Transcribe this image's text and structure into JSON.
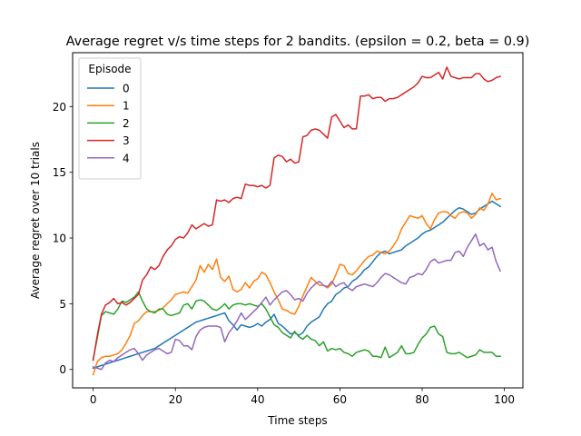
{
  "chart_data": {
    "type": "line",
    "title": "Average regret v/s time steps for 2 bandits. (epsilon = 0.2, beta = 0.9)",
    "xlabel": "Time steps",
    "ylabel": "Average regret over 10 trials",
    "xlim": [
      -5,
      104.5
    ],
    "ylim": [
      -1.4,
      24.1
    ],
    "xticks": [
      0,
      20,
      40,
      60,
      80,
      100
    ],
    "yticks": [
      0,
      5,
      10,
      15,
      20
    ],
    "grid": false,
    "legend": {
      "title": "Episode",
      "placement": "top-left"
    },
    "x": [
      0,
      1,
      2,
      3,
      4,
      5,
      6,
      7,
      8,
      9,
      10,
      11,
      12,
      13,
      14,
      15,
      16,
      17,
      18,
      19,
      20,
      21,
      22,
      23,
      24,
      25,
      26,
      27,
      28,
      29,
      30,
      31,
      32,
      33,
      34,
      35,
      36,
      37,
      38,
      39,
      40,
      41,
      42,
      43,
      44,
      45,
      46,
      47,
      48,
      49,
      50,
      51,
      52,
      53,
      54,
      55,
      56,
      57,
      58,
      59,
      60,
      61,
      62,
      63,
      64,
      65,
      66,
      67,
      68,
      69,
      70,
      71,
      72,
      73,
      74,
      75,
      76,
      77,
      78,
      79,
      80,
      81,
      82,
      83,
      84,
      85,
      86,
      87,
      88,
      89,
      90,
      91,
      92,
      93,
      94,
      95,
      96,
      97,
      98,
      99
    ],
    "series": [
      {
        "name": "0",
        "color": "#1f77b4",
        "values": [
          0.1,
          0.2,
          0.3,
          0.4,
          0.5,
          0.6,
          0.7,
          0.8,
          0.9,
          1.0,
          1.1,
          1.2,
          1.3,
          1.4,
          1.5,
          1.6,
          1.8,
          2.0,
          2.2,
          2.4,
          2.6,
          2.8,
          3.0,
          3.2,
          3.4,
          3.6,
          3.7,
          3.8,
          3.9,
          4.0,
          4.1,
          4.2,
          4.3,
          3.7,
          3.4,
          3.0,
          3.4,
          3.3,
          3.2,
          3.3,
          3.5,
          3.3,
          3.6,
          3.8,
          4.2,
          3.5,
          3.3,
          3.0,
          2.7,
          2.8,
          2.6,
          2.8,
          3.3,
          3.6,
          3.8,
          4.0,
          4.6,
          5.0,
          5.2,
          5.7,
          5.9,
          6.2,
          6.3,
          6.7,
          6.9,
          7.2,
          7.6,
          7.8,
          8.2,
          8.6,
          8.9,
          9.0,
          8.8,
          8.9,
          9.0,
          9.1,
          9.4,
          9.6,
          9.8,
          10.0,
          10.3,
          10.5,
          10.6,
          10.8,
          11.0,
          11.2,
          11.5,
          11.8,
          12.1,
          12.3,
          12.2,
          12.0,
          11.8,
          11.9,
          12.2,
          12.4,
          12.6,
          12.8,
          12.6,
          12.4
        ]
      },
      {
        "name": "1",
        "color": "#ff7f0e",
        "values": [
          -0.4,
          0.6,
          0.9,
          1.0,
          1.0,
          1.1,
          1.2,
          1.5,
          2.0,
          2.6,
          3.5,
          3.7,
          4.1,
          4.4,
          4.4,
          4.4,
          4.5,
          4.7,
          5.0,
          5.3,
          5.7,
          5.8,
          5.9,
          5.8,
          6.3,
          6.8,
          7.9,
          7.4,
          8.0,
          7.6,
          8.4,
          7.0,
          6.7,
          7.1,
          6.1,
          5.9,
          6.1,
          6.6,
          6.2,
          6.7,
          6.9,
          7.4,
          7.2,
          6.6,
          5.9,
          5.3,
          4.6,
          4.5,
          4.3,
          4.2,
          4.8,
          5.6,
          6.3,
          7.0,
          6.7,
          6.4,
          6.4,
          6.2,
          6.5,
          7.2,
          8.0,
          7.9,
          7.3,
          7.2,
          7.5,
          7.9,
          8.3,
          8.6,
          8.7,
          9.0,
          8.9,
          8.8,
          9.0,
          9.4,
          9.9,
          10.7,
          11.2,
          11.7,
          11.6,
          11.5,
          11.7,
          11.1,
          10.7,
          11.4,
          11.9,
          12.0,
          12.0,
          11.7,
          11.5,
          11.9,
          12.0,
          11.9,
          11.5,
          11.8,
          12.3,
          12.1,
          12.6,
          13.4,
          12.9,
          13.0
        ]
      },
      {
        "name": "2",
        "color": "#2ca02c",
        "values": [
          0.8,
          2.4,
          4.1,
          4.4,
          4.3,
          4.2,
          4.6,
          5.2,
          5.1,
          5.3,
          5.5,
          5.9,
          5.2,
          4.6,
          4.4,
          4.3,
          4.6,
          4.6,
          4.2,
          4.1,
          4.2,
          4.3,
          4.9,
          5.0,
          4.6,
          5.2,
          5.3,
          5.2,
          4.9,
          4.6,
          4.5,
          4.7,
          5.0,
          4.6,
          4.9,
          5.0,
          5.0,
          4.9,
          5.0,
          4.9,
          4.8,
          5.0,
          4.6,
          4.0,
          3.4,
          3.2,
          2.8,
          2.6,
          2.4,
          2.9,
          2.5,
          2.3,
          2.6,
          2.3,
          2.2,
          1.8,
          2.1,
          1.4,
          1.6,
          1.5,
          1.6,
          1.3,
          1.2,
          1.0,
          1.3,
          1.4,
          1.5,
          1.4,
          1.0,
          1.0,
          0.9,
          1.7,
          0.9,
          1.1,
          1.3,
          1.8,
          1.2,
          1.2,
          1.3,
          1.9,
          2.4,
          2.7,
          3.2,
          3.3,
          2.7,
          2.5,
          1.3,
          1.2,
          1.2,
          1.3,
          1.1,
          0.9,
          1.0,
          1.1,
          1.5,
          1.3,
          1.3,
          1.3,
          1.0,
          1.0
        ]
      },
      {
        "name": "3",
        "color": "#d62728",
        "values": [
          0.7,
          2.6,
          4.2,
          4.9,
          5.1,
          5.4,
          5.0,
          5.1,
          4.9,
          5.1,
          5.4,
          5.7,
          6.8,
          7.2,
          7.8,
          7.6,
          7.9,
          8.6,
          9.1,
          9.4,
          9.9,
          10.1,
          10.0,
          10.4,
          11.0,
          10.7,
          10.9,
          11.1,
          10.9,
          11.0,
          12.9,
          12.8,
          12.9,
          12.7,
          13.0,
          13.1,
          13.0,
          14.1,
          14.0,
          14.0,
          13.9,
          14.0,
          13.8,
          14.0,
          16.1,
          16.3,
          16.2,
          15.8,
          16.0,
          15.7,
          15.8,
          17.7,
          17.8,
          18.2,
          18.3,
          18.2,
          17.9,
          17.6,
          19.2,
          19.4,
          18.9,
          18.4,
          18.6,
          18.3,
          18.3,
          20.8,
          20.8,
          20.9,
          20.6,
          20.7,
          20.7,
          20.4,
          20.6,
          20.6,
          20.7,
          20.9,
          21.1,
          21.3,
          21.5,
          21.8,
          22.3,
          22.2,
          22.2,
          22.4,
          22.6,
          22.1,
          23.0,
          22.3,
          22.2,
          22.1,
          22.2,
          22.2,
          22.2,
          22.5,
          22.5,
          22.1,
          21.9,
          22.0,
          22.2,
          22.3
        ]
      },
      {
        "name": "4",
        "color": "#9467bd",
        "values": [
          0.2,
          0.1,
          0.0,
          0.5,
          0.7,
          0.6,
          0.9,
          1.1,
          1.3,
          1.5,
          1.6,
          1.2,
          0.7,
          1.1,
          1.3,
          1.5,
          1.6,
          1.4,
          1.2,
          1.3,
          2.3,
          2.2,
          1.8,
          1.8,
          1.5,
          2.5,
          3.0,
          3.2,
          3.3,
          3.3,
          3.3,
          3.2,
          2.1,
          2.8,
          3.2,
          3.7,
          4.3,
          3.8,
          4.1,
          4.4,
          4.7,
          5.1,
          5.5,
          4.9,
          5.3,
          5.6,
          5.9,
          6.0,
          5.7,
          5.3,
          5.4,
          5.2,
          5.8,
          6.2,
          6.5,
          6.7,
          6.4,
          6.3,
          6.7,
          6.3,
          6.5,
          6.6,
          6.2,
          6.0,
          6.3,
          6.4,
          6.5,
          6.4,
          6.3,
          6.6,
          7.0,
          7.3,
          7.2,
          7.0,
          6.8,
          6.6,
          6.5,
          7.0,
          7.1,
          7.3,
          7.2,
          7.6,
          8.2,
          8.4,
          8.1,
          8.2,
          8.3,
          8.3,
          8.9,
          9.0,
          8.6,
          9.3,
          9.8,
          10.3,
          9.4,
          9.6,
          9.1,
          9.3,
          8.2,
          7.5
        ]
      }
    ]
  }
}
